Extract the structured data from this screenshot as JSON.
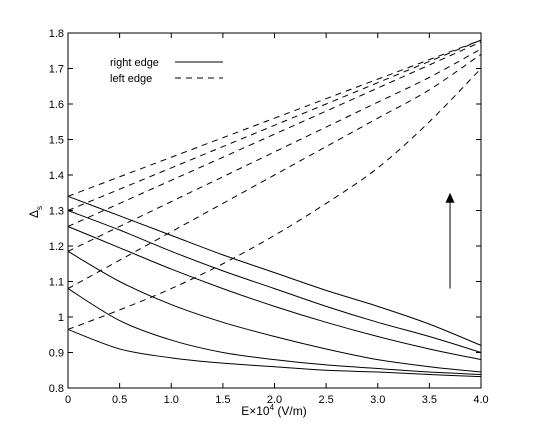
{
  "chart_data": {
    "type": "line",
    "title": "",
    "xlabel": {
      "prefix": "E×10",
      "sup": "4",
      "suffix": " (V/m)"
    },
    "ylabel": {
      "main": "Δ",
      "sub": "s"
    },
    "xlim": [
      0,
      4.0
    ],
    "ylim": [
      0.8,
      1.8
    ],
    "xticks": [
      "0",
      "0.5",
      "1.0",
      "1.5",
      "2.0",
      "2.5",
      "3.0",
      "3.5",
      "4.0"
    ],
    "yticks": [
      "0.8",
      "0.9",
      "1",
      "1.1",
      "1.2",
      "1.3",
      "1.4",
      "1.5",
      "1.6",
      "1.7",
      "1.8"
    ],
    "grid": false,
    "legend": {
      "position": "top-left",
      "entries": [
        {
          "label": "right edge",
          "style": "solid"
        },
        {
          "label": "left edge",
          "style": "dashed"
        }
      ]
    },
    "annotation": {
      "type": "arrow",
      "direction": "up",
      "x": 3.7,
      "y_from": 1.08,
      "y_to": 1.35
    },
    "x": [
      0,
      0.5,
      1.0,
      1.5,
      2.0,
      2.5,
      3.0,
      3.5,
      4.0
    ],
    "series": [
      {
        "style": "solid",
        "values": [
          0.965,
          0.91,
          0.885,
          0.87,
          0.86,
          0.85,
          0.845,
          0.838,
          0.832
        ]
      },
      {
        "style": "solid",
        "values": [
          1.08,
          0.99,
          0.935,
          0.9,
          0.88,
          0.865,
          0.855,
          0.845,
          0.838
        ]
      },
      {
        "style": "solid",
        "values": [
          1.185,
          1.1,
          1.035,
          0.985,
          0.945,
          0.91,
          0.88,
          0.86,
          0.845
        ]
      },
      {
        "style": "solid",
        "values": [
          1.255,
          1.195,
          1.135,
          1.08,
          1.03,
          0.985,
          0.945,
          0.91,
          0.88
        ]
      },
      {
        "style": "solid",
        "values": [
          1.3,
          1.245,
          1.185,
          1.13,
          1.08,
          1.03,
          0.985,
          0.945,
          0.9
        ]
      },
      {
        "style": "solid",
        "values": [
          1.34,
          1.285,
          1.23,
          1.175,
          1.125,
          1.075,
          1.03,
          0.98,
          0.92
        ]
      },
      {
        "style": "dashed",
        "values": [
          0.965,
          1.02,
          1.08,
          1.15,
          1.23,
          1.32,
          1.42,
          1.55,
          1.7
        ]
      },
      {
        "style": "dashed",
        "values": [
          1.08,
          1.16,
          1.24,
          1.32,
          1.4,
          1.48,
          1.56,
          1.64,
          1.74
        ]
      },
      {
        "style": "dashed",
        "values": [
          1.185,
          1.255,
          1.325,
          1.395,
          1.465,
          1.535,
          1.605,
          1.675,
          1.755
        ]
      },
      {
        "style": "dashed",
        "values": [
          1.255,
          1.32,
          1.385,
          1.45,
          1.515,
          1.58,
          1.645,
          1.71,
          1.775
        ]
      },
      {
        "style": "dashed",
        "values": [
          1.3,
          1.36,
          1.42,
          1.48,
          1.54,
          1.6,
          1.66,
          1.72,
          1.78
        ]
      },
      {
        "style": "dashed",
        "values": [
          1.34,
          1.395,
          1.45,
          1.505,
          1.56,
          1.615,
          1.67,
          1.725,
          1.78
        ]
      }
    ]
  }
}
